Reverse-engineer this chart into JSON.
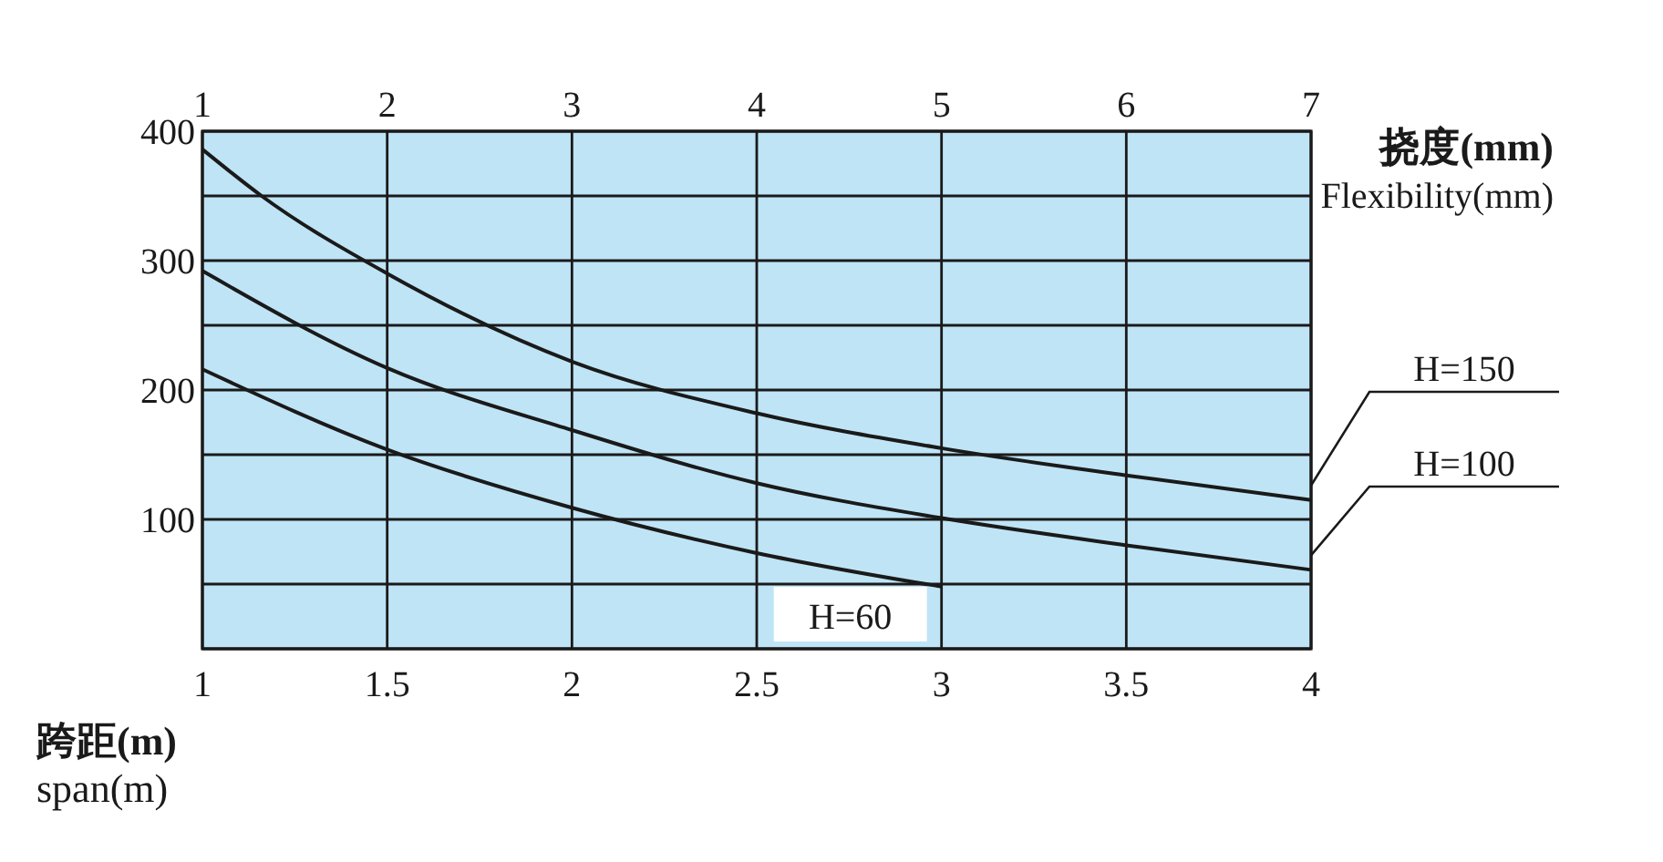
{
  "chart_data": {
    "type": "line",
    "xlabel": "跨距(m)\nspan(m)",
    "x2label": "挠度(mm)\nFlexibility(mm)",
    "xlim": [
      1,
      4
    ],
    "xticks": [
      1,
      1.5,
      2,
      2.5,
      3,
      3.5,
      4
    ],
    "x2lim": [
      1,
      7
    ],
    "x2ticks": [
      1,
      2,
      3,
      4,
      5,
      6,
      7
    ],
    "ylim": [
      0,
      400
    ],
    "yticks": [
      {
        "value": 0,
        "label": null
      },
      {
        "value": 50,
        "label": null
      },
      100,
      {
        "value": 150,
        "label": null
      },
      200,
      {
        "value": 250,
        "label": null
      },
      300,
      {
        "value": 350,
        "label": null
      },
      400
    ],
    "grid": true,
    "line_style": "solid",
    "marker": "none",
    "series": [
      {
        "name": "H=150",
        "color": "#1a1a1a",
        "x": [
          1,
          1.16,
          1.5,
          2,
          2.5,
          3,
          3.5,
          4
        ],
        "values": [
          386,
          350,
          290,
          222,
          182,
          155,
          134,
          115
        ]
      },
      {
        "name": "H=100",
        "color": "#1a1a1a",
        "x": [
          1,
          1.5,
          2,
          2.5,
          3,
          3.5,
          4
        ],
        "values": [
          292,
          217,
          169,
          128,
          101,
          80,
          61
        ]
      },
      {
        "name": "H=60",
        "color": "#1a1a1a",
        "x": [
          1,
          1.5,
          2,
          2.5,
          3
        ],
        "values": [
          216,
          154,
          109,
          74,
          48
        ]
      }
    ]
  }
}
